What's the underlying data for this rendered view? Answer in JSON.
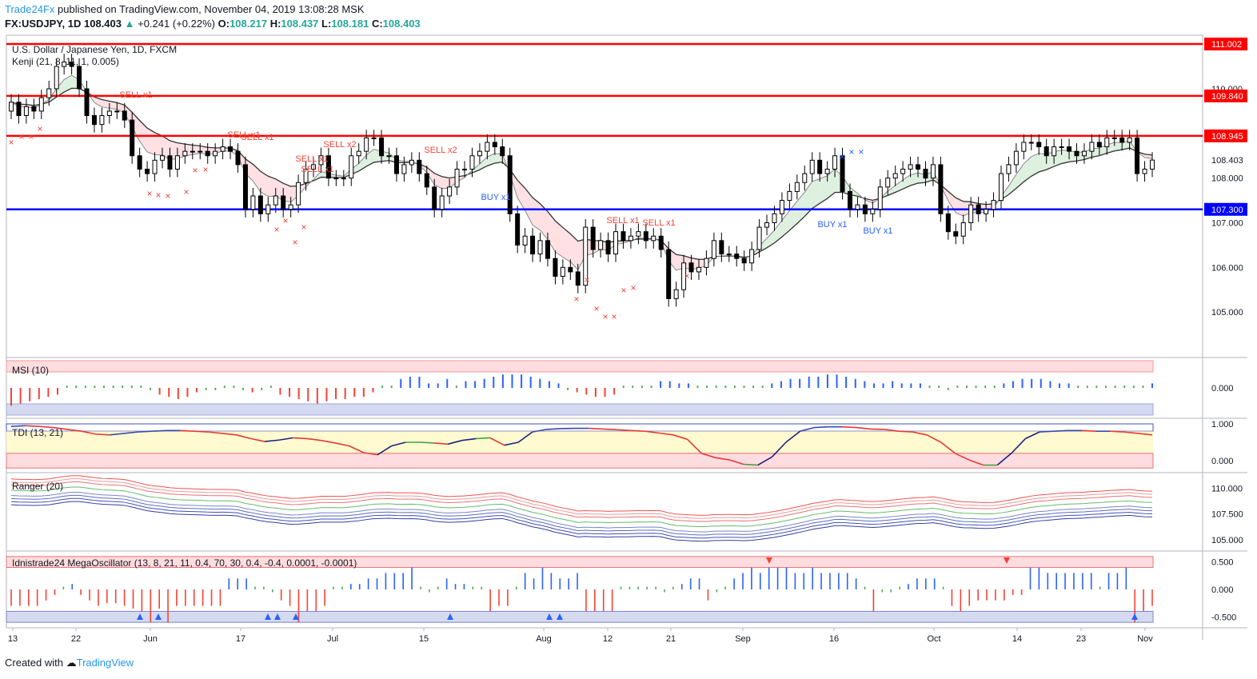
{
  "header": {
    "brand": "Trade24Fx",
    "published": "published on TradingView.com, November 04, 2019 13:08:28 MSK",
    "symbol": "FX:USDJPY, 1D",
    "last": "108.403",
    "change_arrow": "▲",
    "change": "+0.241 (+0.22%)",
    "open_label": "O:",
    "open": "108.217",
    "high_label": "H:",
    "high": "108.437",
    "low_label": "L:",
    "low": "108.181",
    "close_label": "C:",
    "close": "108.403"
  },
  "main_pane": {
    "title": "U.S. Dollar / Japanese Yen, 1D, FXCM",
    "indicator": "Kenji (21, 8, 11, 1, 0.005)"
  },
  "footer": {
    "created_with": "Created with",
    "tradingview": "TradingView"
  },
  "colors": {
    "bull": "#ffffff",
    "bear": "#000000",
    "resistance": "#ff0000",
    "support": "#0000ff",
    "signal_sell": "#f44336",
    "signal_buy": "#2962ff",
    "cloud_bear": "#ffcdd2",
    "cloud_bull": "#c8e6c9"
  },
  "chart_data": [
    {
      "type": "candlestick",
      "title": "U.S. Dollar / Japanese Yen, 1D, FXCM",
      "ylim": [
        104.0,
        111.2
      ],
      "x_ticks": [
        "13",
        "22",
        "Jun",
        "17",
        "Jul",
        "15",
        "Aug",
        "12",
        "21",
        "Sep",
        "16",
        "Oct",
        "14",
        "23",
        "Nov"
      ],
      "y_ticks": [
        "105.000",
        "106.000",
        "107.000",
        "108.000",
        "110.000"
      ],
      "horizontal_levels": [
        {
          "value": 111.002,
          "label": "111.002",
          "color": "#ff0000"
        },
        {
          "value": 109.84,
          "label": "109.840",
          "color": "#ff0000"
        },
        {
          "value": 108.945,
          "label": "108.945",
          "color": "#ff0000"
        },
        {
          "value": 107.3,
          "label": "107.300",
          "color": "#0000ff"
        }
      ],
      "last_price_label": "108.403",
      "closes": [
        109.7,
        109.4,
        109.6,
        109.5,
        109.8,
        110.0,
        110.5,
        110.6,
        110.5,
        110.0,
        109.4,
        109.2,
        109.4,
        109.5,
        109.5,
        109.3,
        108.5,
        108.2,
        108.1,
        108.4,
        108.5,
        108.2,
        108.5,
        108.6,
        108.6,
        108.6,
        108.5,
        108.6,
        108.7,
        108.6,
        108.3,
        107.3,
        107.6,
        107.2,
        107.4,
        107.6,
        107.3,
        107.4,
        107.9,
        108.2,
        108.3,
        108.5,
        108.0,
        108.0,
        108.0,
        108.5,
        108.6,
        108.9,
        108.9,
        108.5,
        108.5,
        108.1,
        108.3,
        108.4,
        108.1,
        107.8,
        107.3,
        107.6,
        107.8,
        108.2,
        108.2,
        108.5,
        108.6,
        108.8,
        108.7,
        108.5,
        107.2,
        106.5,
        106.7,
        106.3,
        106.6,
        106.2,
        105.8,
        106.0,
        105.9,
        105.6,
        106.9,
        106.4,
        106.6,
        106.3,
        106.8,
        106.6,
        106.7,
        106.8,
        106.6,
        106.7,
        106.4,
        105.3,
        105.5,
        106.1,
        105.9,
        106.0,
        106.2,
        106.6,
        106.3,
        106.3,
        106.2,
        106.1,
        106.4,
        106.9,
        107.0,
        107.2,
        107.5,
        107.7,
        107.9,
        108.1,
        108.4,
        108.1,
        108.2,
        108.5,
        107.7,
        107.3,
        107.4,
        107.2,
        107.3,
        107.8,
        108.0,
        108.1,
        108.2,
        108.3,
        108.2,
        108.0,
        108.3,
        107.2,
        106.8,
        106.7,
        107.0,
        107.4,
        107.2,
        107.3,
        107.5,
        108.1,
        108.3,
        108.6,
        108.8,
        108.8,
        108.7,
        108.5,
        108.7,
        108.7,
        108.6,
        108.5,
        108.6,
        108.8,
        108.7,
        108.9,
        108.9,
        108.8,
        108.9,
        108.1,
        108.2,
        108.403
      ],
      "signals": [
        {
          "label": "SELL x1",
          "type": "sell"
        },
        {
          "label": "SELL x1",
          "type": "sell"
        },
        {
          "label": "SELL x1",
          "type": "sell"
        },
        {
          "label": "SELL x1",
          "type": "sell"
        },
        {
          "label": "SELL x1",
          "type": "sell"
        },
        {
          "label": "SELL x2",
          "type": "sell"
        },
        {
          "label": "SELL x2",
          "type": "sell"
        },
        {
          "label": "BUY x1",
          "type": "buy"
        },
        {
          "label": "SELL x1",
          "type": "sell"
        },
        {
          "label": "SELL x1",
          "type": "sell"
        },
        {
          "label": "BUY x1",
          "type": "buy"
        },
        {
          "label": "BUY x1",
          "type": "buy"
        }
      ]
    },
    {
      "type": "bar",
      "title": "MSI (10)",
      "y_ticks": [
        "0.000"
      ],
      "values": [
        -0.8,
        -0.7,
        -0.6,
        -0.5,
        -0.4,
        -0.3,
        0.1,
        0.1,
        0.1,
        0.1,
        0.1,
        0.1,
        0.1,
        0.1,
        0.1,
        -0.1,
        -0.3,
        -0.4,
        -0.5,
        -0.4,
        -0.2,
        -0.1,
        -0.1,
        0.1,
        0.1,
        -0.1,
        -0.2,
        -0.1,
        0.1,
        -0.3,
        -0.4,
        -0.5,
        -0.6,
        -0.7,
        -0.6,
        -0.5,
        -0.5,
        -0.4,
        -0.4,
        -0.2,
        0.1,
        0.1,
        0.4,
        0.5,
        0.5,
        0.2,
        0.2,
        0.4,
        0.1,
        0.3,
        0.3,
        0.4,
        0.5,
        0.6,
        0.6,
        0.6,
        0.5,
        0.4,
        0.3,
        0.2,
        -0.1,
        -0.2,
        -0.3,
        -0.4,
        -0.4,
        -0.3,
        0.1,
        0.1,
        0.1,
        0.1,
        0.3,
        0.3,
        0.2,
        0.2,
        0.1,
        0.1,
        0.1,
        0.1,
        0.1,
        0.1,
        0.1,
        0.1,
        0.2,
        0.3,
        0.4,
        0.4,
        0.5,
        0.5,
        0.6,
        0.6,
        0.5,
        0.4,
        0.3,
        0.2,
        0.2,
        0.3,
        0.2,
        0.2,
        0.2,
        0.1,
        0.1,
        -0.1,
        0.1,
        0.1,
        0.1,
        0.1,
        0.1,
        0.2,
        0.3,
        0.4,
        0.4,
        0.4,
        0.3,
        0.2,
        0.2,
        0.1,
        0.1,
        0.1,
        0.1,
        0.1,
        0.1,
        0.1,
        0.1,
        0.2
      ],
      "levels": [
        0.5,
        -0.5
      ]
    },
    {
      "type": "line",
      "title": "TDI (13, 21)",
      "y_ticks": [
        "1.000",
        "0.000"
      ],
      "ylim": [
        -0.2,
        1.05
      ],
      "values": [
        0.93,
        0.95,
        0.93,
        0.9,
        0.85,
        0.8,
        0.72,
        0.7,
        0.74,
        0.78,
        0.8,
        0.82,
        0.82,
        0.8,
        0.78,
        0.74,
        0.7,
        0.6,
        0.52,
        0.56,
        0.62,
        0.6,
        0.55,
        0.48,
        0.4,
        0.22,
        0.16,
        0.4,
        0.5,
        0.5,
        0.48,
        0.45,
        0.55,
        0.6,
        0.62,
        0.42,
        0.5,
        0.78,
        0.85,
        0.87,
        0.88,
        0.88,
        0.86,
        0.84,
        0.82,
        0.8,
        0.75,
        0.7,
        0.58,
        0.2,
        0.08,
        0.02,
        -0.1,
        -0.12,
        0.1,
        0.5,
        0.8,
        0.9,
        0.92,
        0.92,
        0.9,
        0.86,
        0.85,
        0.8,
        0.78,
        0.7,
        0.5,
        0.2,
        0.02,
        -0.12,
        -0.12,
        0.2,
        0.6,
        0.78,
        0.8,
        0.82,
        0.82,
        0.8,
        0.8,
        0.78,
        0.74,
        0.7
      ],
      "levels": [
        0.8,
        0.2
      ]
    },
    {
      "type": "line",
      "title": "Ranger (20)",
      "y_ticks": [
        "110.000",
        "107.500",
        "105.000"
      ],
      "ylim": [
        104.0,
        111.5
      ]
    },
    {
      "type": "bar",
      "title": "Idnistrade24 MegaOscillator (13, 8, 21, 11, 0.4, 70, 30, 0.4, -0.4, 0.0001, -0.0001)",
      "y_ticks": [
        "0.500",
        "0.000",
        "-0.500"
      ],
      "ylim": [
        -0.7,
        0.7
      ],
      "values": [
        -0.3,
        -0.3,
        -0.3,
        -0.3,
        -0.2,
        -0.1,
        0.05,
        0.1,
        -0.1,
        -0.2,
        -0.3,
        -0.25,
        -0.25,
        -0.3,
        -0.35,
        -0.4,
        -0.6,
        -0.35,
        -0.6,
        -0.3,
        -0.3,
        -0.3,
        -0.3,
        -0.3,
        -0.3,
        0.2,
        0.2,
        0.2,
        0.05,
        0.05,
        -0.05,
        -0.2,
        -0.3,
        -0.6,
        -0.4,
        -0.4,
        -0.3,
        0.05,
        0.05,
        0.1,
        0.1,
        0.2,
        0.2,
        0.3,
        0.3,
        0.3,
        0.4,
        0.05,
        -0.05,
        0.05,
        0.2,
        0.1,
        0.1,
        0.05,
        0.05,
        -0.4,
        -0.3,
        -0.3,
        0.05,
        0.3,
        0.2,
        0.4,
        0.3,
        0.2,
        0.2,
        0.3,
        -0.4,
        -0.4,
        -0.4,
        -0.4,
        0.05,
        0.05,
        0.05,
        0.05,
        0.05,
        -0.05,
        0.05,
        0.1,
        0.2,
        0.2,
        -0.2,
        -0.05,
        0.05,
        0.2,
        0.3,
        0.4,
        0.3,
        0.4,
        0.4,
        0.4,
        0.3,
        0.3,
        0.4,
        0.3,
        0.3,
        0.3,
        0.3,
        0.2,
        0.05,
        -0.4,
        -0.05,
        -0.05,
        0.05,
        0.1,
        0.2,
        0.2,
        0.2,
        0.05,
        -0.3,
        -0.4,
        -0.3,
        -0.2,
        -0.2,
        -0.2,
        -0.2,
        -0.1,
        -0.1,
        0.4,
        0.4,
        0.3,
        0.3,
        0.3,
        0.3,
        0.3,
        0.3,
        0.05,
        0.3,
        0.3,
        0.4,
        -0.6,
        -0.4,
        -0.3
      ],
      "levels": [
        0.4,
        -0.4
      ]
    }
  ]
}
